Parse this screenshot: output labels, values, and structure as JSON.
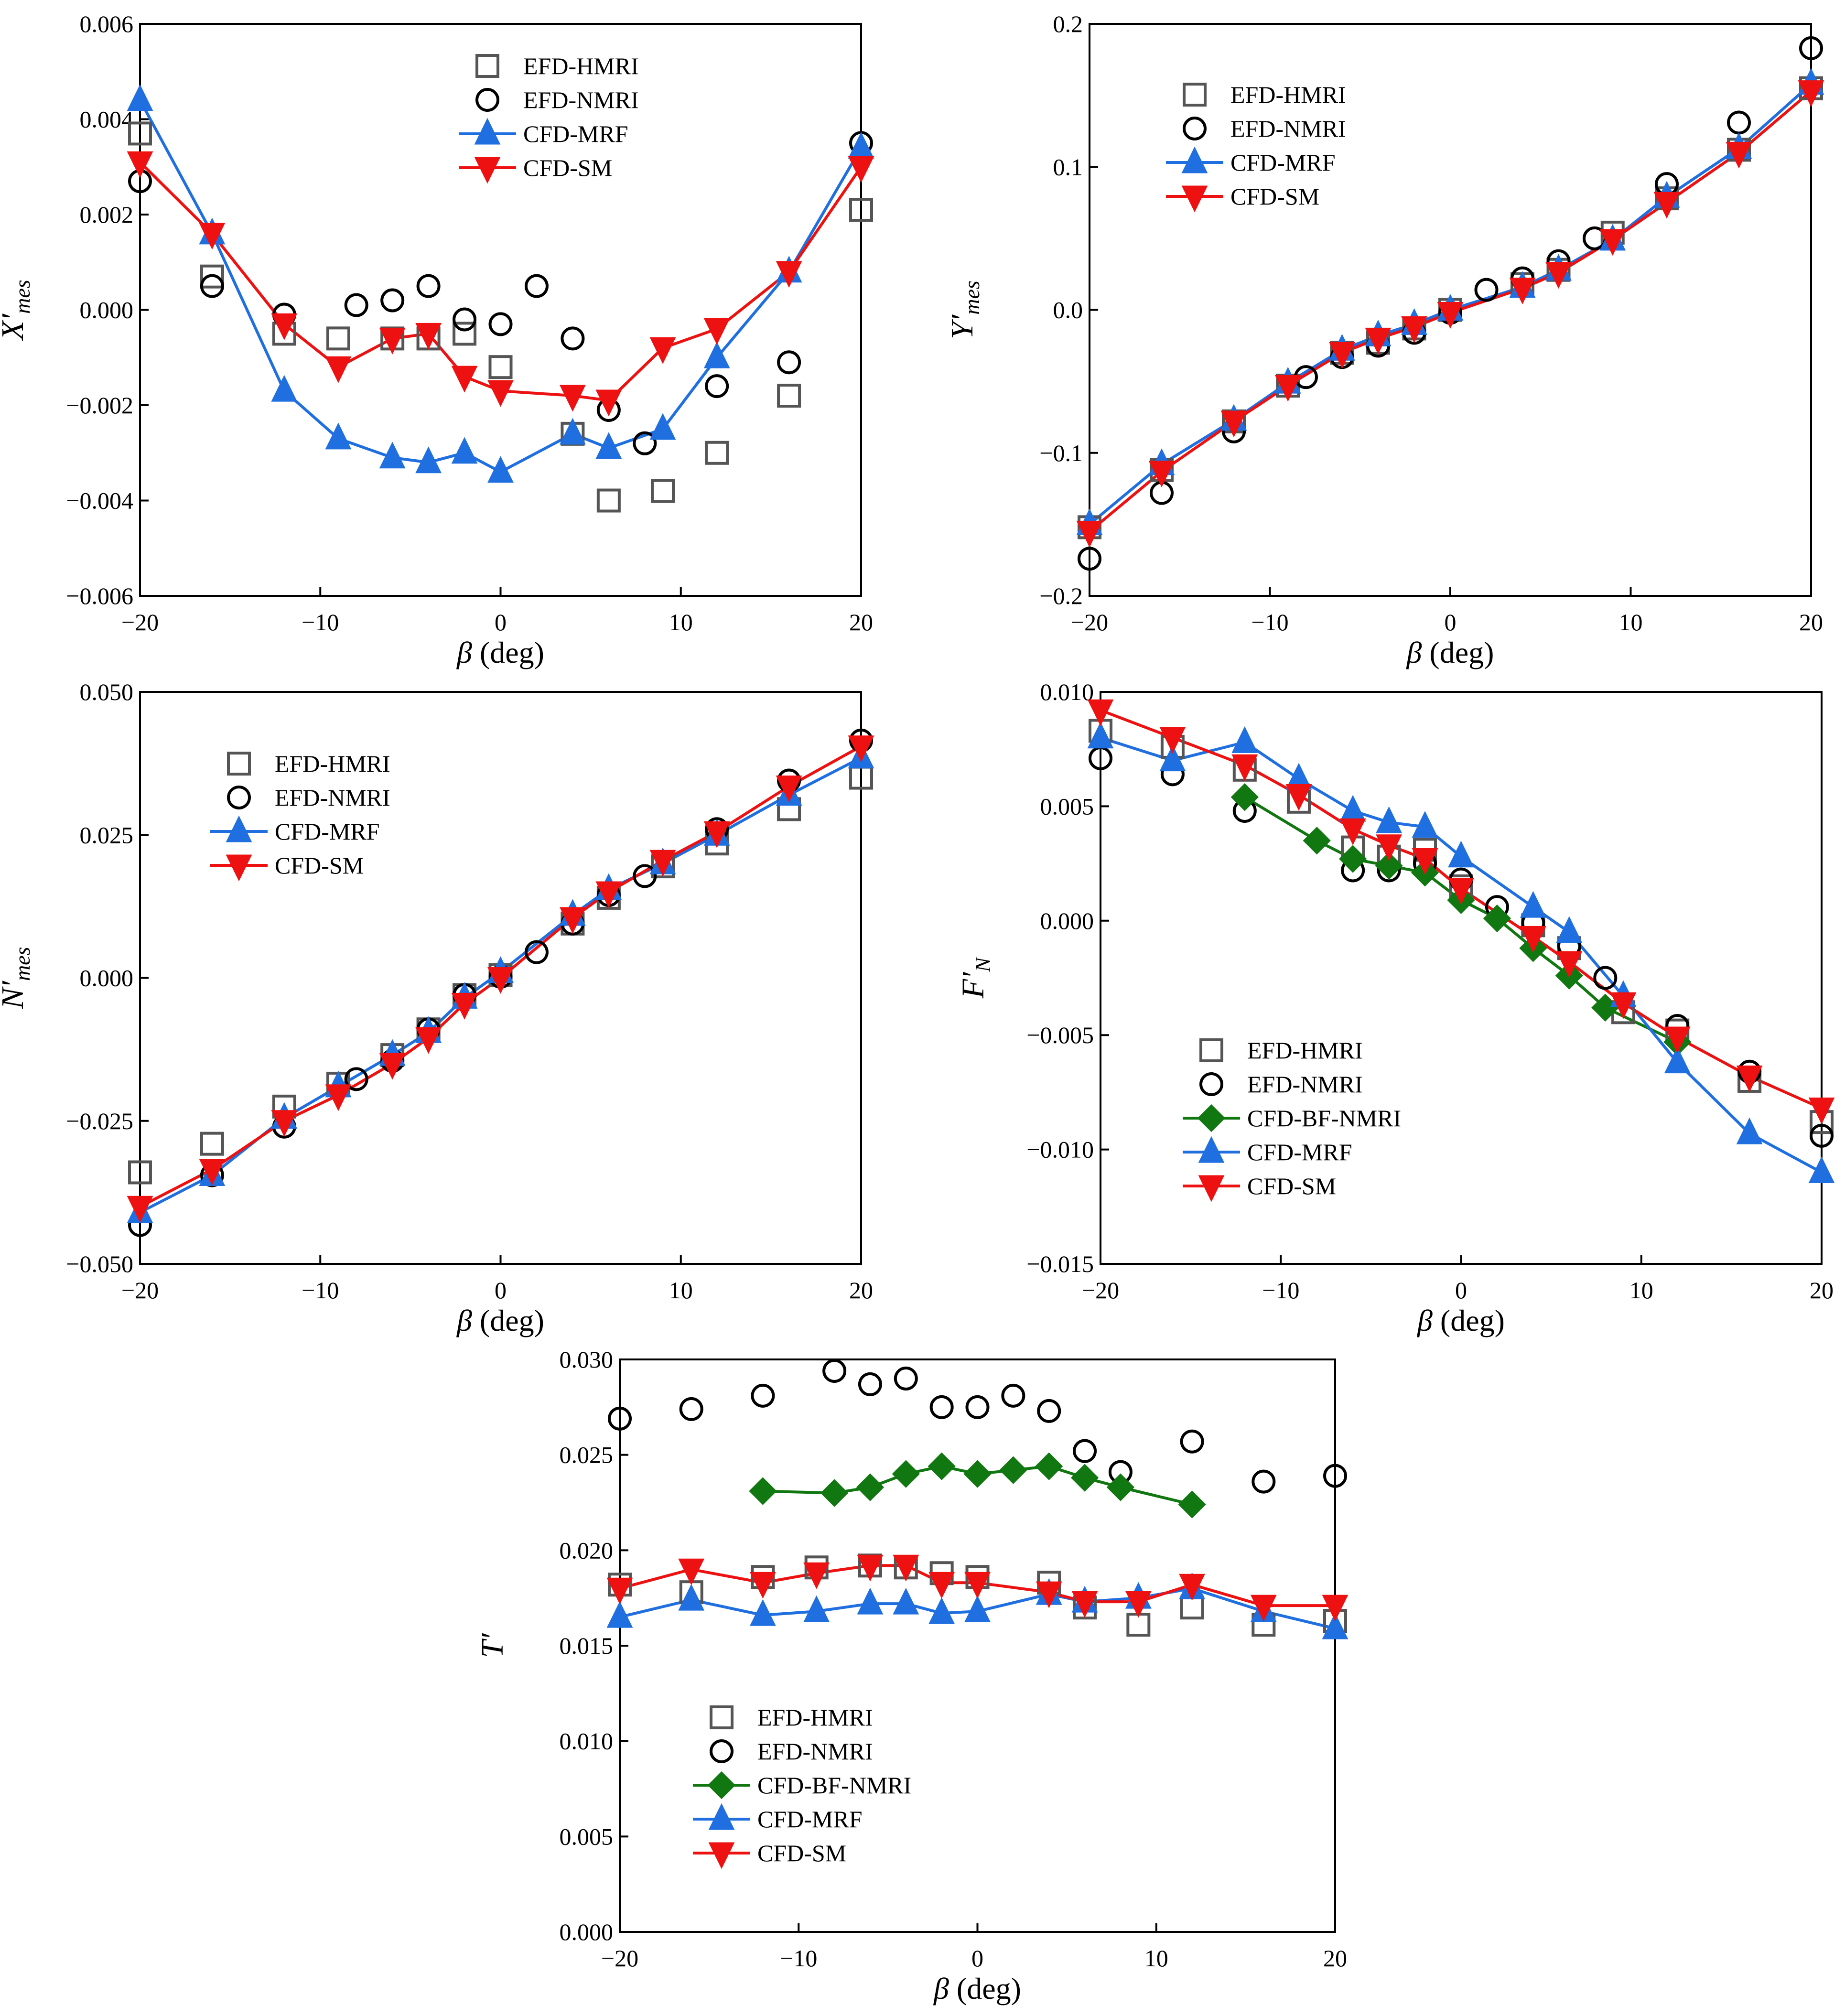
{
  "colors": {
    "hmri": "#555555",
    "nmri": "#000000",
    "bf": "#117711",
    "mrf": "#1f6fe0",
    "sm": "#ee1111"
  },
  "chart_data": [
    {
      "id": "xmes",
      "type": "line",
      "ylabel_main": "X′",
      "ylabel_sub": "mes",
      "xlabel_main": "β",
      "xlabel_rest": " (deg)",
      "xlim": [
        -20,
        20
      ],
      "ylim": [
        -0.006,
        0.006
      ],
      "xticks": [
        -20,
        -10,
        0,
        10,
        20
      ],
      "xtick_labels": [
        "−20",
        "−10",
        "0",
        "10",
        "20"
      ],
      "yticks": [
        -0.006,
        -0.004,
        -0.002,
        0,
        0.002,
        0.004,
        0.006
      ],
      "ytick_labels": [
        "−0.006",
        "−0.004",
        "−0.002",
        "0.000",
        "0.002",
        "0.004",
        "0.006"
      ],
      "legend": [
        "EFD-HMRI",
        "EFD-NMRI",
        "CFD-MRF",
        "CFD-SM"
      ],
      "series": [
        {
          "name": "EFD-HMRI",
          "style": "hmri",
          "x": [
            -20,
            -16,
            -12,
            -9,
            -6,
            -4,
            -2,
            0,
            4,
            6,
            9,
            12,
            16,
            20
          ],
          "y": [
            0.0037,
            0.0007,
            -0.0005,
            -0.0006,
            -0.0006,
            -0.0006,
            -0.0005,
            -0.0012,
            -0.0026,
            -0.004,
            -0.0038,
            -0.003,
            -0.0018,
            0.0021
          ]
        },
        {
          "name": "EFD-NMRI",
          "style": "nmri",
          "x": [
            -20,
            -16,
            -12,
            -8,
            -6,
            -4,
            -2,
            0,
            2,
            4,
            6,
            8,
            12,
            16,
            20
          ],
          "y": [
            0.0027,
            0.0005,
            -0.0001,
            0.0001,
            0.0002,
            0.0005,
            -0.0002,
            -0.0003,
            0.0005,
            -0.0006,
            -0.0021,
            -0.0028,
            -0.0016,
            -0.0011,
            0.0035
          ]
        },
        {
          "name": "CFD-MRF",
          "style": "mrf",
          "x": [
            -20,
            -16,
            -12,
            -9,
            -6,
            -4,
            -2,
            0,
            4,
            6,
            9,
            12,
            16,
            20
          ],
          "y": [
            0.0044,
            0.0016,
            -0.0017,
            -0.0027,
            -0.0031,
            -0.0032,
            -0.003,
            -0.0034,
            -0.0026,
            -0.0029,
            -0.0025,
            -0.001,
            0.0008,
            0.0034
          ]
        },
        {
          "name": "CFD-SM",
          "style": "sm",
          "x": [
            -20,
            -16,
            -12,
            -9,
            -6,
            -4,
            -2,
            0,
            4,
            6,
            9,
            12,
            16,
            20
          ],
          "y": [
            0.0031,
            0.0016,
            -0.0003,
            -0.0012,
            -0.0006,
            -0.0005,
            -0.0014,
            -0.0017,
            -0.0018,
            -0.0019,
            -0.0008,
            -0.0004,
            0.0008,
            0.003
          ]
        }
      ]
    },
    {
      "id": "ymes",
      "type": "line",
      "ylabel_main": "Y′",
      "ylabel_sub": "mes",
      "xlabel_main": "β",
      "xlabel_rest": " (deg)",
      "xlim": [
        -20,
        20
      ],
      "ylim": [
        -0.2,
        0.2
      ],
      "xticks": [
        -20,
        -10,
        0,
        10,
        20
      ],
      "xtick_labels": [
        "−20",
        "−10",
        "0",
        "10",
        "20"
      ],
      "yticks": [
        -0.2,
        -0.1,
        0,
        0.1,
        0.2
      ],
      "ytick_labels": [
        "−0.2",
        "−0.1",
        "0.0",
        "0.1",
        "0.2"
      ],
      "legend": [
        "EFD-HMRI",
        "EFD-NMRI",
        "CFD-MRF",
        "CFD-SM"
      ],
      "series": [
        {
          "name": "EFD-HMRI",
          "style": "hmri",
          "x": [
            -20,
            -16,
            -12,
            -9,
            -6,
            -4,
            -2,
            0,
            4,
            6,
            9,
            12,
            16,
            20
          ],
          "y": [
            -0.152,
            -0.112,
            -0.078,
            -0.053,
            -0.03,
            -0.023,
            -0.013,
            0,
            0.018,
            0.028,
            0.054,
            0.078,
            0.112,
            0.155
          ]
        },
        {
          "name": "EFD-NMRI",
          "style": "nmri",
          "x": [
            -20,
            -16,
            -12,
            -8,
            -6,
            -4,
            -2,
            0,
            2,
            4,
            6,
            8,
            12,
            16,
            20
          ],
          "y": [
            -0.174,
            -0.128,
            -0.085,
            -0.047,
            -0.033,
            -0.025,
            -0.016,
            -0.002,
            0.014,
            0.022,
            0.034,
            0.05,
            0.088,
            0.131,
            0.183
          ]
        },
        {
          "name": "CFD-MRF",
          "style": "mrf",
          "x": [
            -20,
            -16,
            -12,
            -9,
            -6,
            -4,
            -2,
            0,
            4,
            6,
            9,
            12,
            16,
            20
          ],
          "y": [
            -0.15,
            -0.108,
            -0.077,
            -0.051,
            -0.028,
            -0.018,
            -0.01,
            0,
            0.016,
            0.028,
            0.049,
            0.079,
            0.113,
            0.158
          ]
        },
        {
          "name": "CFD-SM",
          "style": "sm",
          "x": [
            -20,
            -16,
            -12,
            -9,
            -6,
            -4,
            -2,
            0,
            4,
            6,
            9,
            12,
            16,
            20
          ],
          "y": [
            -0.155,
            -0.113,
            -0.078,
            -0.053,
            -0.03,
            -0.02,
            -0.012,
            -0.002,
            0.015,
            0.026,
            0.049,
            0.075,
            0.11,
            0.153
          ]
        }
      ]
    },
    {
      "id": "nmes",
      "type": "line",
      "ylabel_main": "N′",
      "ylabel_sub": "mes",
      "xlabel_main": "β",
      "xlabel_rest": " (deg)",
      "xlim": [
        -20,
        20
      ],
      "ylim": [
        -0.05,
        0.05
      ],
      "xticks": [
        -20,
        -10,
        0,
        10,
        20
      ],
      "xtick_labels": [
        "−20",
        "−10",
        "0",
        "10",
        "20"
      ],
      "yticks": [
        -0.05,
        -0.025,
        0,
        0.025,
        0.05
      ],
      "ytick_labels": [
        "−0.050",
        "−0.025",
        "0.000",
        "0.025",
        "0.050"
      ],
      "legend": [
        "EFD-HMRI",
        "EFD-NMRI",
        "CFD-MRF",
        "CFD-SM"
      ],
      "series": [
        {
          "name": "EFD-HMRI",
          "style": "hmri",
          "x": [
            -20,
            -16,
            -12,
            -9,
            -6,
            -4,
            -2,
            0,
            4,
            6,
            9,
            12,
            16,
            20
          ],
          "y": [
            -0.034,
            -0.029,
            -0.0225,
            -0.0185,
            -0.0135,
            -0.009,
            -0.003,
            0.0005,
            0.0095,
            0.014,
            0.0195,
            0.0235,
            0.0295,
            0.035
          ]
        },
        {
          "name": "EFD-NMRI",
          "style": "nmri",
          "x": [
            -20,
            -16,
            -12,
            -8,
            -6,
            -4,
            -2,
            0,
            2,
            4,
            6,
            8,
            12,
            16,
            20
          ],
          "y": [
            -0.0432,
            -0.0345,
            -0.026,
            -0.0177,
            -0.0145,
            -0.009,
            -0.003,
            0.0002,
            0.0045,
            0.0095,
            0.0145,
            0.0178,
            0.026,
            0.0345,
            0.0415
          ]
        },
        {
          "name": "CFD-MRF",
          "style": "mrf",
          "x": [
            -20,
            -16,
            -12,
            -9,
            -6,
            -4,
            -2,
            0,
            4,
            6,
            9,
            12,
            16,
            20
          ],
          "y": [
            -0.041,
            -0.0345,
            -0.0245,
            -0.019,
            -0.0135,
            -0.0095,
            -0.0035,
            0.001,
            0.011,
            0.0155,
            0.02,
            0.025,
            0.032,
            0.0385
          ]
        },
        {
          "name": "CFD-SM",
          "style": "sm",
          "x": [
            -20,
            -16,
            -12,
            -9,
            -6,
            -4,
            -2,
            0,
            4,
            6,
            9,
            12,
            16,
            20
          ],
          "y": [
            -0.04,
            -0.0335,
            -0.025,
            -0.0205,
            -0.015,
            -0.0105,
            -0.0045,
            0,
            0.0105,
            0.015,
            0.0205,
            0.0255,
            0.0335,
            0.0405
          ]
        }
      ]
    },
    {
      "id": "fn",
      "type": "line",
      "ylabel_main": "F′",
      "ylabel_sub": "N",
      "xlabel_main": "β",
      "xlabel_rest": " (deg)",
      "xlim": [
        -20,
        20
      ],
      "ylim": [
        -0.015,
        0.01
      ],
      "xticks": [
        -20,
        -10,
        0,
        10,
        20
      ],
      "xtick_labels": [
        "−20",
        "−10",
        "0",
        "10",
        "20"
      ],
      "yticks": [
        -0.015,
        -0.01,
        -0.005,
        0,
        0.005,
        0.01
      ],
      "ytick_labels": [
        "−0.015",
        "−0.010",
        "−0.005",
        "0.000",
        "0.005",
        "0.010"
      ],
      "legend": [
        "EFD-HMRI",
        "EFD-NMRI",
        "CFD-BF-NMRI",
        "CFD-MRF",
        "CFD-SM"
      ],
      "series": [
        {
          "name": "EFD-HMRI",
          "style": "hmri",
          "x": [
            -20,
            -16,
            -12,
            -9,
            -6,
            -4,
            -2,
            0,
            4,
            6,
            9,
            12,
            16,
            20
          ],
          "y": [
            0.0083,
            0.0076,
            0.0066,
            0.0052,
            0.0032,
            0.0028,
            0.0031,
            0.0015,
            -0.0002,
            -0.0012,
            -0.004,
            -0.0048,
            -0.007,
            -0.0088
          ]
        },
        {
          "name": "EFD-NMRI",
          "style": "nmri",
          "x": [
            -20,
            -16,
            -12,
            -6,
            -4,
            -2,
            0,
            2,
            4,
            6,
            8,
            12,
            16,
            20
          ],
          "y": [
            0.0071,
            0.0064,
            0.0048,
            0.0022,
            0.0022,
            0.0025,
            0.0018,
            0.0006,
            -0.0001,
            -0.0011,
            -0.0025,
            -0.0046,
            -0.0066,
            -0.0094
          ]
        },
        {
          "name": "CFD-BF-NMRI",
          "style": "bf",
          "x": [
            -12,
            -8,
            -6,
            -4,
            -2,
            0,
            2,
            4,
            6,
            8,
            12
          ],
          "y": [
            0.0054,
            0.0035,
            0.0027,
            0.0024,
            0.0021,
            0.0009,
            0.0001,
            -0.0012,
            -0.0024,
            -0.0038,
            -0.0053
          ]
        },
        {
          "name": "CFD-MRF",
          "style": "mrf",
          "x": [
            -20,
            -16,
            -12,
            -9,
            -6,
            -4,
            -2,
            0,
            4,
            6,
            9,
            12,
            16,
            20
          ],
          "y": [
            0.008,
            0.007,
            0.0078,
            0.0062,
            0.0048,
            0.0043,
            0.0041,
            0.0028,
            0.0006,
            -0.0005,
            -0.0033,
            -0.0062,
            -0.0093,
            -0.011
          ]
        },
        {
          "name": "CFD-SM",
          "style": "sm",
          "x": [
            -20,
            -16,
            -12,
            -9,
            -6,
            -4,
            -2,
            0,
            4,
            6,
            9,
            12,
            16,
            20
          ],
          "y": [
            0.0092,
            0.008,
            0.0068,
            0.0055,
            0.004,
            0.0033,
            0.0027,
            0.0014,
            -0.0007,
            -0.0018,
            -0.0036,
            -0.0051,
            -0.0068,
            -0.0082
          ]
        }
      ]
    },
    {
      "id": "tp",
      "type": "line",
      "ylabel_main": "T′",
      "ylabel_sub": "",
      "xlabel_main": "β",
      "xlabel_rest": " (deg)",
      "xlim": [
        -20,
        20
      ],
      "ylim": [
        0,
        0.03
      ],
      "xticks": [
        -20,
        -10,
        0,
        10,
        20
      ],
      "xtick_labels": [
        "−20",
        "−10",
        "0",
        "10",
        "20"
      ],
      "yticks": [
        0,
        0.005,
        0.01,
        0.015,
        0.02,
        0.025,
        0.03
      ],
      "ytick_labels": [
        "0.000",
        "0.005",
        "0.010",
        "0.015",
        "0.020",
        "0.025",
        "0.030"
      ],
      "legend": [
        "EFD-HMRI",
        "EFD-NMRI",
        "CFD-BF-NMRI",
        "CFD-MRF",
        "CFD-SM"
      ],
      "series": [
        {
          "name": "EFD-HMRI",
          "style": "hmri",
          "x": [
            -20,
            -16,
            -12,
            -9,
            -6,
            -4,
            -2,
            0,
            4,
            6,
            9,
            12,
            16,
            20
          ],
          "y": [
            0.0182,
            0.0178,
            0.0186,
            0.0191,
            0.0192,
            0.0191,
            0.0188,
            0.0186,
            0.0183,
            0.017,
            0.0161,
            0.017,
            0.0161,
            0.0163
          ]
        },
        {
          "name": "EFD-NMRI",
          "style": "nmri",
          "x": [
            -20,
            -16,
            -12,
            -8,
            -6,
            -4,
            -2,
            0,
            2,
            4,
            6,
            8,
            12,
            16,
            20
          ],
          "y": [
            0.0269,
            0.0274,
            0.0281,
            0.0294,
            0.0287,
            0.029,
            0.0275,
            0.0275,
            0.0281,
            0.0273,
            0.0252,
            0.0241,
            0.0257,
            0.0236,
            0.0239
          ]
        },
        {
          "name": "CFD-BF-NMRI",
          "style": "bf",
          "x": [
            -12,
            -8,
            -6,
            -4,
            -2,
            0,
            2,
            4,
            6,
            8,
            12
          ],
          "y": [
            0.0231,
            0.023,
            0.0233,
            0.024,
            0.0244,
            0.024,
            0.0242,
            0.0244,
            0.0238,
            0.0233,
            0.0224
          ]
        },
        {
          "name": "CFD-MRF",
          "style": "mrf",
          "x": [
            -20,
            -16,
            -12,
            -9,
            -6,
            -4,
            -2,
            0,
            4,
            6,
            9,
            12,
            16,
            20
          ],
          "y": [
            0.0165,
            0.0174,
            0.0166,
            0.0168,
            0.0172,
            0.0172,
            0.0167,
            0.0168,
            0.0177,
            0.0173,
            0.0175,
            0.018,
            0.0168,
            0.0159
          ]
        },
        {
          "name": "CFD-SM",
          "style": "sm",
          "x": [
            -20,
            -16,
            -12,
            -9,
            -6,
            -4,
            -2,
            0,
            4,
            6,
            9,
            12,
            16,
            20
          ],
          "y": [
            0.018,
            0.019,
            0.0183,
            0.0188,
            0.0192,
            0.0192,
            0.0183,
            0.0183,
            0.0178,
            0.0173,
            0.0173,
            0.0182,
            0.0171,
            0.0171
          ]
        }
      ]
    }
  ]
}
